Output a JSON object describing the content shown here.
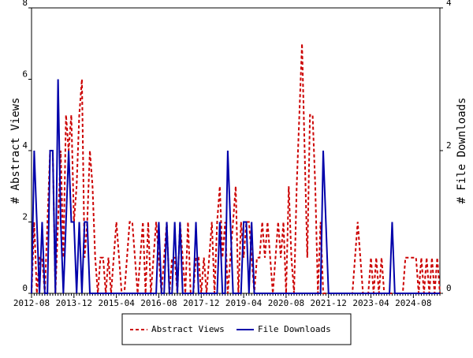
{
  "chart_data": {
    "type": "line",
    "categories": [
      "2012-08",
      null,
      null,
      null,
      null,
      null,
      null,
      null,
      null,
      null,
      null,
      null,
      null,
      null,
      null,
      null,
      "2013-12",
      null,
      null,
      null,
      null,
      null,
      null,
      null,
      null,
      null,
      null,
      null,
      null,
      null,
      null,
      null,
      "2015-04",
      null,
      null,
      null,
      null,
      null,
      null,
      null,
      null,
      null,
      null,
      null,
      null,
      null,
      null,
      null,
      "2016-08",
      null,
      null,
      null,
      null,
      null,
      null,
      null,
      null,
      null,
      null,
      null,
      null,
      null,
      null,
      null,
      "2017-12",
      null,
      null,
      null,
      null,
      null,
      null,
      null,
      null,
      null,
      null,
      null,
      null,
      null,
      null,
      null,
      "2019-04",
      null,
      null,
      null,
      null,
      null,
      null,
      null,
      null,
      null,
      null,
      null,
      null,
      null,
      null,
      null,
      "2020-08",
      null,
      null,
      null,
      null,
      null,
      null,
      null,
      null,
      null,
      null,
      null,
      null,
      null,
      null,
      null,
      "2021-12",
      null,
      null,
      null,
      null,
      null,
      null,
      null,
      null,
      null,
      null,
      null,
      null,
      null,
      null,
      null,
      "2023-04",
      null,
      null,
      null,
      null,
      null,
      null,
      null,
      null,
      null,
      null,
      null,
      null,
      null,
      null,
      null,
      "2024-08",
      null,
      null,
      null,
      null,
      null,
      null,
      null,
      null,
      null,
      null
    ],
    "ylabel": "# Abstract Views",
    "y2label": "# File Downloads",
    "ylim": [
      0,
      8
    ],
    "yticks": [
      0,
      2,
      4,
      6,
      8
    ],
    "y2lim": [
      0,
      4
    ],
    "y2ticks": [
      0,
      2,
      4
    ],
    "legend": "bottom",
    "series": [
      {
        "name": "Abstract Views",
        "color": "#cc0000",
        "dashed": true,
        "axis": "y",
        "values": [
          0,
          2,
          0,
          1,
          1,
          0,
          2,
          4,
          4,
          0,
          2,
          4,
          1,
          5,
          4,
          5,
          2,
          3,
          5,
          6,
          1,
          2,
          4,
          3,
          1,
          0,
          1,
          1,
          0,
          1,
          0,
          1,
          2,
          1,
          0,
          0,
          1,
          2,
          2,
          1,
          0,
          1,
          2,
          0,
          2,
          0,
          1,
          2,
          1,
          0,
          1,
          2,
          0,
          1,
          1,
          0,
          2,
          1,
          0,
          2,
          0,
          0,
          1,
          1,
          0,
          1,
          0,
          1,
          2,
          0,
          2,
          3,
          1,
          2,
          0,
          1,
          2,
          3,
          0,
          2,
          1,
          2,
          2,
          1,
          0,
          1,
          1,
          2,
          1,
          2,
          1,
          0,
          1,
          2,
          1,
          2,
          0,
          3,
          1,
          0,
          3,
          5,
          7,
          4,
          1,
          5,
          5,
          3,
          0,
          2,
          0,
          0,
          0,
          0,
          0,
          0,
          0,
          0,
          0,
          0,
          0,
          0,
          1,
          2,
          1,
          0,
          0,
          0,
          1,
          0,
          1,
          0,
          1,
          0,
          0,
          0,
          0,
          0,
          0,
          0,
          0,
          1,
          1,
          1,
          1,
          1,
          0,
          1,
          0,
          1,
          0,
          1,
          0,
          1,
          0
        ]
      },
      {
        "name": "File Downloads",
        "color": "#0000aa",
        "dashed": false,
        "axis": "y2",
        "values": [
          0,
          2,
          1,
          0,
          1,
          0,
          0,
          2,
          2,
          0,
          3,
          1,
          0,
          1,
          2,
          1,
          1,
          0,
          1,
          0,
          1,
          1,
          0,
          0,
          0,
          0,
          0,
          0,
          0,
          0,
          0,
          0,
          0,
          0,
          0,
          0,
          0,
          0,
          0,
          0,
          0,
          0,
          0,
          0,
          0,
          0,
          0,
          0,
          1,
          0,
          0,
          1,
          0,
          0,
          1,
          0,
          1,
          0,
          0,
          0,
          0,
          0,
          1,
          0,
          0,
          0,
          0,
          0,
          0,
          0,
          0,
          1,
          0,
          0,
          2,
          1,
          0,
          0,
          0,
          0,
          1,
          1,
          0,
          1,
          0,
          0,
          0,
          0,
          0,
          0,
          0,
          0,
          0,
          0,
          0,
          0,
          0,
          0,
          0,
          0,
          0,
          0,
          0,
          0,
          0,
          0,
          0,
          0,
          0,
          0,
          2,
          1,
          0,
          0,
          0,
          0,
          0,
          0,
          0,
          0,
          0,
          0,
          0,
          0,
          0,
          0,
          0,
          0,
          0,
          0,
          0,
          0,
          0,
          0,
          0,
          0,
          1,
          0,
          0,
          0,
          0,
          0,
          0,
          0,
          0,
          0,
          0,
          0,
          0,
          0,
          0,
          0,
          0,
          0,
          0
        ]
      }
    ]
  }
}
